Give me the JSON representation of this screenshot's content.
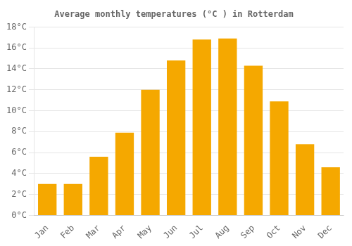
{
  "chart_data": {
    "type": "bar",
    "title": "Average monthly temperatures (°C ) in Rotterdam",
    "categories": [
      "Jan",
      "Feb",
      "Mar",
      "Apr",
      "May",
      "Jun",
      "Jul",
      "Aug",
      "Sep",
      "Oct",
      "Nov",
      "Dec"
    ],
    "values": [
      3.0,
      3.0,
      5.6,
      7.9,
      12.0,
      14.8,
      16.8,
      16.9,
      14.3,
      10.9,
      6.8,
      4.6
    ],
    "color": "#F5A800",
    "ylim": [
      0,
      18
    ],
    "yticks": [
      {
        "value": 0,
        "label": "0°C"
      },
      {
        "value": 2,
        "label": "2°C"
      },
      {
        "value": 4,
        "label": "4°C"
      },
      {
        "value": 6,
        "label": "6°C"
      },
      {
        "value": 8,
        "label": "8°C"
      },
      {
        "value": 10,
        "label": "10°C"
      },
      {
        "value": 12,
        "label": "12°C"
      },
      {
        "value": 14,
        "label": "14°C"
      },
      {
        "value": 16,
        "label": "16°C"
      },
      {
        "value": 18,
        "label": "18°C"
      }
    ],
    "grid": true
  }
}
